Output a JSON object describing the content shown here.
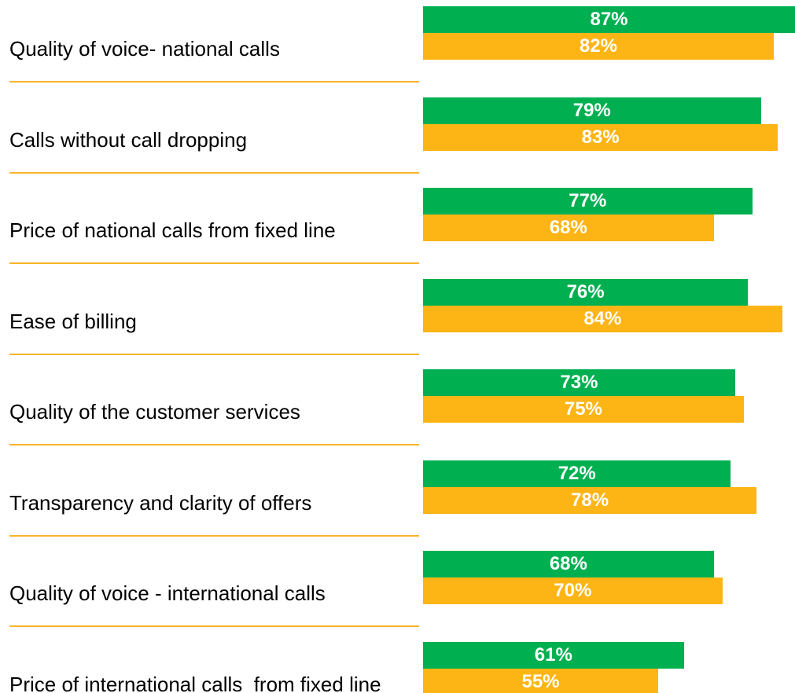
{
  "chart_data": {
    "type": "bar",
    "categories": [
      "Quality of voice- national calls",
      "Calls without call dropping",
      "Price of national calls from fixed line",
      "Ease of billing",
      "Quality of the customer services",
      "Transparency and clarity of offers",
      "Quality of voice - international calls",
      "Price of international calls  from fixed line"
    ],
    "series": [
      {
        "color": "#00b050",
        "values": [
          87,
          79,
          77,
          76,
          73,
          72,
          68,
          61
        ],
        "value_labels": [
          "87%",
          "79%",
          "77%",
          "76%",
          "73%",
          "72%",
          "68%",
          "61%"
        ]
      },
      {
        "color": "#fdb515",
        "values": [
          82,
          83,
          68,
          84,
          75,
          78,
          70,
          55
        ],
        "value_labels": [
          "82%",
          "83%",
          "68%",
          "84%",
          "75%",
          "78%",
          "70%",
          "55%"
        ]
      }
    ]
  }
}
